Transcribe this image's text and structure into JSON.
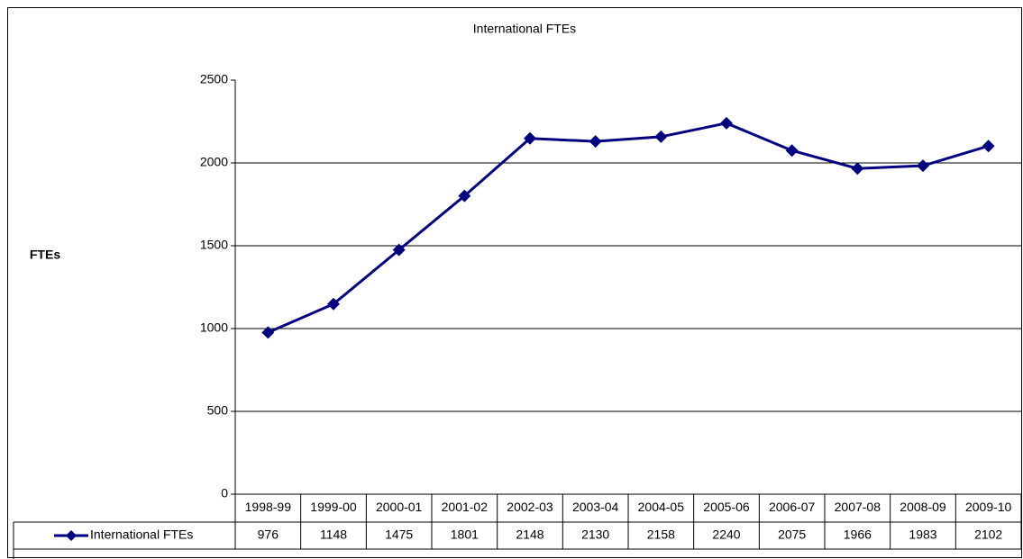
{
  "chart_data": {
    "type": "line",
    "title": "International FTEs",
    "y_label": "FTEs",
    "categories": [
      "1998-99",
      "1999-00",
      "2000-01",
      "2001-02",
      "2002-03",
      "2003-04",
      "2004-05",
      "2005-06",
      "2006-07",
      "2007-08",
      "2008-09",
      "2009-10"
    ],
    "series": [
      {
        "name": "International FTEs",
        "color": "#000080",
        "values": [
          976,
          1148,
          1475,
          1801,
          2148,
          2130,
          2158,
          2240,
          2075,
          1966,
          1983,
          2102
        ]
      }
    ],
    "ylim": [
      0,
      2500
    ],
    "yticks": [
      0,
      500,
      1000,
      1500,
      2000,
      2500
    ],
    "grid": true,
    "data_table": true
  }
}
